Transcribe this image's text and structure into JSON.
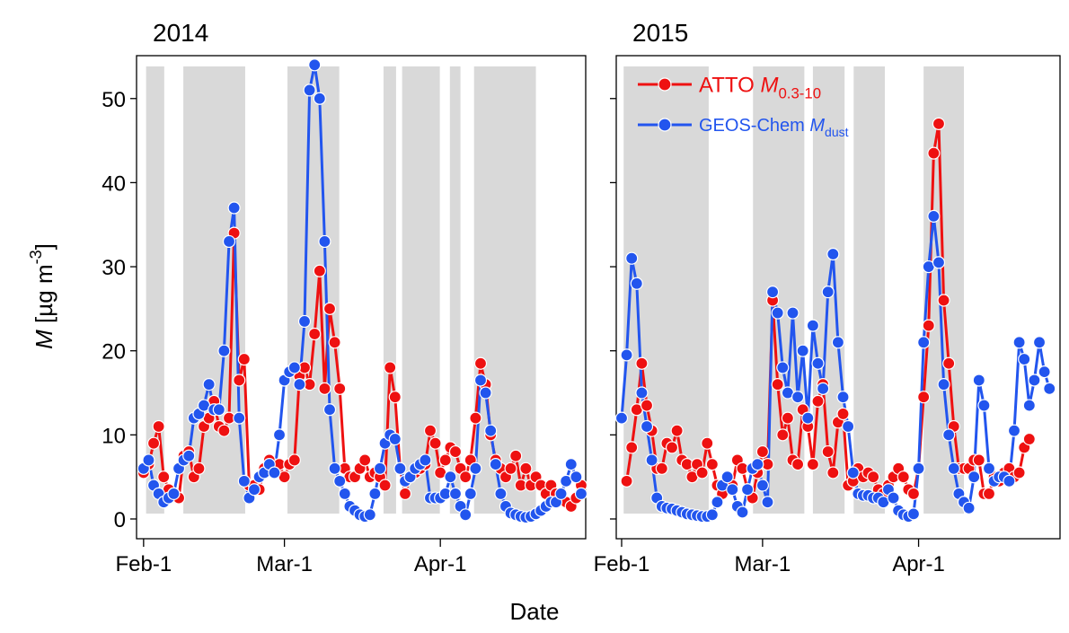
{
  "chart_data": [
    {
      "type": "line",
      "title": "2014",
      "ylabel": "M [µg m-3]",
      "xlabel": "Date",
      "xlim": [
        -1.4,
        87.9
      ],
      "ylim": [
        -2.35,
        55.1
      ],
      "xticks": [
        {
          "value": 0,
          "label": "Feb-1"
        },
        {
          "value": 28,
          "label": "Mar-1"
        },
        {
          "value": 59,
          "label": "Apr-1"
        }
      ],
      "yticks": [
        0,
        10,
        20,
        30,
        40,
        50
      ],
      "show_ytick_labels": true,
      "shade_color": "#d9d9d9",
      "shaded_periods": [
        [
          0.5,
          4.1
        ],
        [
          7.9,
          20.2
        ],
        [
          28.6,
          38.9
        ],
        [
          47.7,
          50.2
        ],
        [
          51.4,
          58.9
        ],
        [
          60.9,
          63
        ],
        [
          65.7,
          78
        ]
      ],
      "x": [
        0,
        1,
        2,
        3,
        4,
        5,
        6,
        7,
        8,
        9,
        10,
        11,
        12,
        13,
        14,
        15,
        16,
        17,
        18,
        19,
        20,
        21,
        22,
        23,
        24,
        25,
        26,
        27,
        28,
        29,
        30,
        31,
        32,
        33,
        34,
        35,
        36,
        37,
        38,
        39,
        40,
        41,
        42,
        43,
        44,
        45,
        46,
        47,
        48,
        49,
        50,
        51,
        52,
        53,
        54,
        55,
        56,
        57,
        58,
        59,
        60,
        61,
        62,
        63,
        64,
        65,
        66,
        67,
        68,
        69,
        70,
        71,
        72,
        73,
        74,
        75,
        76,
        77,
        78,
        79,
        80,
        81,
        82,
        83,
        84,
        85,
        86,
        87
      ],
      "series": [
        {
          "color": "#ee1111",
          "values": [
            5.5,
            6.5,
            9,
            11,
            5,
            3.5,
            3,
            2.5,
            7.5,
            8,
            5,
            6,
            11,
            12,
            14,
            11,
            10.5,
            12,
            34,
            16.5,
            19,
            4,
            4,
            3.5,
            6,
            7,
            6,
            6.5,
            5,
            6.5,
            7,
            17,
            18,
            16,
            22,
            29.5,
            15.5,
            25,
            21,
            15.5,
            6,
            5,
            5,
            6,
            7,
            5,
            5.5,
            5,
            4,
            18,
            14.5,
            6,
            3,
            5,
            5.5,
            6,
            6.5,
            10.5,
            9,
            5.5,
            7,
            8.5,
            8,
            6,
            5,
            7,
            12,
            18.5,
            16,
            10,
            7,
            6,
            5,
            6,
            7.5,
            4,
            6,
            4,
            5,
            4,
            3,
            4,
            3,
            2.5,
            2,
            1.5,
            2.5,
            4
          ]
        },
        {
          "color": "#2255ee",
          "values": [
            6,
            7,
            4,
            3,
            2,
            2.5,
            3,
            6,
            7,
            7.5,
            12,
            12.5,
            13.5,
            16,
            13,
            13,
            20,
            33,
            37,
            12,
            4.5,
            2.5,
            3.5,
            5,
            5.5,
            6.5,
            5.5,
            10,
            16.5,
            17.5,
            18,
            16,
            23.5,
            51,
            54,
            50,
            33,
            13,
            6,
            4.5,
            3,
            1.5,
            1,
            0.5,
            0.3,
            0.5,
            3,
            6,
            9,
            10,
            9.5,
            6,
            4.5,
            5,
            6,
            6.5,
            7,
            2.5,
            2.5,
            2.5,
            3,
            5,
            3,
            1.5,
            0.5,
            3,
            6,
            16.5,
            15,
            10.5,
            6.5,
            3,
            1.5,
            0.7,
            0.5,
            0.3,
            0.2,
            0.3,
            0.6,
            1,
            1.5,
            2,
            2,
            3,
            4.5,
            6.5,
            5,
            3
          ]
        }
      ]
    },
    {
      "type": "line",
      "title": "2015",
      "xlim": [
        -1.07,
        87.1
      ],
      "ylim": [
        -2.35,
        55.1
      ],
      "xticks": [
        {
          "value": 0,
          "label": "Feb-1"
        },
        {
          "value": 28,
          "label": "Mar-1"
        },
        {
          "value": 59,
          "label": "Apr-1"
        }
      ],
      "yticks": [
        0,
        10,
        20,
        30,
        40,
        50
      ],
      "show_ytick_labels": false,
      "shade_color": "#d9d9d9",
      "shaded_periods": [
        [
          0.4,
          17.3
        ],
        [
          26.1,
          36.3
        ],
        [
          38,
          44.3
        ],
        [
          46.1,
          52.3
        ],
        [
          60,
          68
        ]
      ],
      "legend": "upper left",
      "x": [
        0,
        1,
        2,
        3,
        4,
        5,
        6,
        7,
        8,
        9,
        10,
        11,
        12,
        13,
        14,
        15,
        16,
        17,
        18,
        19,
        20,
        21,
        22,
        23,
        24,
        25,
        26,
        27,
        28,
        29,
        30,
        31,
        32,
        33,
        34,
        35,
        36,
        37,
        38,
        39,
        40,
        41,
        42,
        43,
        44,
        45,
        46,
        47,
        48,
        49,
        50,
        51,
        52,
        53,
        54,
        55,
        56,
        57,
        58,
        59,
        60,
        61,
        62,
        63,
        64,
        65,
        66,
        67,
        68,
        69,
        70,
        71,
        72,
        73,
        74,
        75,
        76,
        77,
        78,
        79,
        80,
        81,
        82,
        83,
        84,
        85
      ],
      "series": [
        {
          "name": "ATTO M0.3-10",
          "color": "#ee1111",
          "values": [
            null,
            4.5,
            8.5,
            13,
            18.5,
            13.5,
            10.5,
            6,
            6,
            9,
            8.5,
            10.5,
            7,
            6.5,
            5,
            6.5,
            5.5,
            9,
            6.5,
            4,
            3,
            5,
            4,
            7,
            6,
            3.5,
            2.5,
            5.5,
            8,
            6.5,
            26,
            16,
            10,
            12,
            7,
            6.5,
            13,
            11,
            6.5,
            14,
            16,
            8,
            5.5,
            11.5,
            12.5,
            4,
            4.5,
            6,
            5,
            5.5,
            5,
            3.5,
            3,
            4,
            5,
            6,
            5,
            3.5,
            3,
            6,
            14.5,
            23,
            43.5,
            47,
            26,
            18.5,
            11,
            6,
            6,
            6,
            7,
            7,
            3,
            3,
            5,
            4.5,
            5.5,
            6,
            5,
            5.5,
            8.5,
            9.5,
            null,
            null,
            null,
            null
          ]
        },
        {
          "name": "GEOS-Chem Mdust",
          "color": "#2255ee",
          "values": [
            12,
            19.5,
            31,
            28,
            15,
            11,
            7,
            2.5,
            1.5,
            1.3,
            1.2,
            1,
            0.8,
            0.6,
            0.5,
            0.4,
            0.3,
            0.3,
            0.5,
            2,
            4,
            5,
            3.5,
            1.5,
            0.8,
            3.5,
            6,
            6.5,
            4,
            2,
            27,
            24.5,
            18,
            15,
            24.5,
            14.5,
            20,
            12,
            23,
            18.5,
            15.5,
            27,
            31.5,
            21,
            14.5,
            11,
            5.5,
            3,
            2.8,
            2.8,
            2.5,
            2.5,
            2,
            3.5,
            2.5,
            1,
            0.5,
            0.3,
            0.6,
            6,
            21,
            30,
            36,
            30.5,
            16,
            10,
            6,
            3,
            2,
            1.3,
            5,
            16.5,
            13.5,
            6,
            4.5,
            5,
            5,
            4.5,
            10.5,
            21,
            19,
            13.5,
            16.5,
            21,
            17.5,
            15.5
          ]
        }
      ]
    }
  ]
}
